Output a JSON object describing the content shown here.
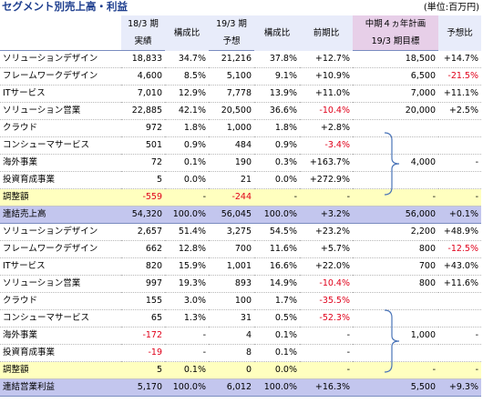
{
  "title": "セグメント別売上高・利益",
  "unit": "(単位:百万円)",
  "header": {
    "col1_line1": "18/3 期",
    "col1_line2": "実績",
    "col2": "構成比",
    "col3_line1": "19/3 期",
    "col3_line2": "予想",
    "col4": "構成比",
    "col5": "前期比",
    "col6_line1": "中期４ヵ年計画",
    "col6_line2": "19/3 期目標",
    "col7": "予想比"
  },
  "sales": [
    {
      "label": "ソリューションデザイン",
      "v1": "18,833",
      "v2": "34.7%",
      "v3": "21,216",
      "v4": "37.8%",
      "v5": "+12.7%",
      "v6": "18,500",
      "v7": "+14.7%"
    },
    {
      "label": "フレームワークデザイン",
      "v1": "4,600",
      "v2": "8.5%",
      "v3": "5,100",
      "v4": "9.1%",
      "v5": "+10.9%",
      "v6": "6,500",
      "v7": "-21.5%"
    },
    {
      "label": "ITサービス",
      "v1": "7,010",
      "v2": "12.9%",
      "v3": "7,778",
      "v4": "13.9%",
      "v5": "+11.0%",
      "v6": "7,000",
      "v7": "+11.1%"
    },
    {
      "label": "ソリューション営業",
      "v1": "22,885",
      "v2": "42.1%",
      "v3": "20,500",
      "v4": "36.6%",
      "v5": "-10.4%",
      "v6": "20,000",
      "v7": "+2.5%"
    },
    {
      "label": "クラウド",
      "v1": "972",
      "v2": "1.8%",
      "v3": "1,000",
      "v4": "1.8%",
      "v5": "+2.8%",
      "v6": "",
      "v7": ""
    },
    {
      "label": "コンシューマサービス",
      "v1": "501",
      "v2": "0.9%",
      "v3": "484",
      "v4": "0.9%",
      "v5": "-3.4%",
      "v6": "",
      "v7": ""
    },
    {
      "label": "海外事業",
      "v1": "72",
      "v2": "0.1%",
      "v3": "190",
      "v4": "0.3%",
      "v5": "+163.7%",
      "v6": "4,000",
      "v7": "-"
    },
    {
      "label": "投資育成事業",
      "v1": "5",
      "v2": "0.0%",
      "v3": "21",
      "v4": "0.0%",
      "v5": "+272.9%",
      "v6": "",
      "v7": ""
    },
    {
      "label": "調整額",
      "v1": "-559",
      "v2": "-",
      "v3": "-244",
      "v4": "-",
      "v5": "-",
      "v6": "-",
      "v7": "-"
    }
  ],
  "sales_total": {
    "label": "連結売上高",
    "v1": "54,320",
    "v2": "100.0%",
    "v3": "56,045",
    "v4": "100.0%",
    "v5": "+3.2%",
    "v6": "56,000",
    "v7": "+0.1%"
  },
  "profit": [
    {
      "label": "ソリューションデザイン",
      "v1": "2,657",
      "v2": "51.4%",
      "v3": "3,275",
      "v4": "54.5%",
      "v5": "+23.2%",
      "v6": "2,200",
      "v7": "+48.9%"
    },
    {
      "label": "フレームワークデザイン",
      "v1": "662",
      "v2": "12.8%",
      "v3": "700",
      "v4": "11.6%",
      "v5": "+5.7%",
      "v6": "800",
      "v7": "-12.5%"
    },
    {
      "label": "ITサービス",
      "v1": "820",
      "v2": "15.9%",
      "v3": "1,001",
      "v4": "16.6%",
      "v5": "+22.0%",
      "v6": "700",
      "v7": "+43.0%"
    },
    {
      "label": "ソリューション営業",
      "v1": "997",
      "v2": "19.3%",
      "v3": "893",
      "v4": "14.9%",
      "v5": "-10.4%",
      "v6": "800",
      "v7": "+11.6%"
    },
    {
      "label": "クラウド",
      "v1": "155",
      "v2": "3.0%",
      "v3": "100",
      "v4": "1.7%",
      "v5": "-35.5%",
      "v6": "",
      "v7": ""
    },
    {
      "label": "コンシューマサービス",
      "v1": "65",
      "v2": "1.3%",
      "v3": "31",
      "v4": "0.5%",
      "v5": "-52.3%",
      "v6": "",
      "v7": ""
    },
    {
      "label": "海外事業",
      "v1": "-172",
      "v2": "-",
      "v3": "4",
      "v4": "0.1%",
      "v5": "-",
      "v6": "1,000",
      "v7": "-"
    },
    {
      "label": "投資育成事業",
      "v1": "-19",
      "v2": "-",
      "v3": "8",
      "v4": "0.1%",
      "v5": "-",
      "v6": "",
      "v7": ""
    },
    {
      "label": "調整額",
      "v1": "5",
      "v2": "0.1%",
      "v3": "0",
      "v4": "0.0%",
      "v5": "-",
      "v6": "-",
      "v7": "-"
    }
  ],
  "profit_total": {
    "label": "連結営業利益",
    "v1": "5,170",
    "v2": "100.0%",
    "v3": "6,012",
    "v4": "100.0%",
    "v5": "+16.3%",
    "v6": "5,500",
    "v7": "+9.3%"
  },
  "colors": {
    "header_bg": "#e8ecfa",
    "plan_header_bg": "#e7cfe8",
    "adjust_bg": "#ffffbf",
    "total_bg": "#c3c6ee",
    "negative": "#e0001a",
    "title": "#1f3f8f",
    "brace": "#4a74b8"
  }
}
